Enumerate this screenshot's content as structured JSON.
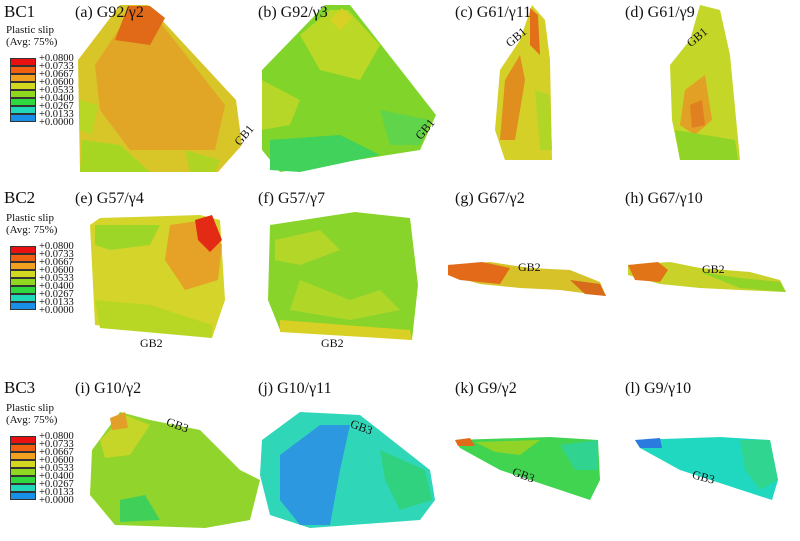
{
  "legend": {
    "title_line1": "Plastic slip",
    "title_line2": "(Avg: 75%)",
    "ticks": [
      "+0.0800",
      "+0.0733",
      "+0.0667",
      "+0.0600",
      "+0.0533",
      "+0.0400",
      "+0.0267",
      "+0.0133",
      "+0.0000"
    ],
    "colors": [
      "#e81010",
      "#f06010",
      "#f2a020",
      "#d2d820",
      "#90d820",
      "#30d840",
      "#20d8b8",
      "#1890e8",
      "#1a1ae8"
    ]
  },
  "rows": [
    {
      "label": "BC1",
      "panels": [
        {
          "label": "(a) G92/γ2",
          "gb": ""
        },
        {
          "label": "(b) G92/γ3",
          "gb": "GB1"
        },
        {
          "label": "(c) G61/γ11",
          "gb": "GB1"
        },
        {
          "label": "(d) G61/γ9",
          "gb": "GB1"
        }
      ]
    },
    {
      "label": "BC2",
      "panels": [
        {
          "label": "(e) G57/γ4",
          "gb": "GB2"
        },
        {
          "label": "(f) G57/γ7",
          "gb": "GB2"
        },
        {
          "label": "(g) G67/γ2",
          "gb": "GB2"
        },
        {
          "label": "(h) G67/γ10",
          "gb": "GB2"
        }
      ]
    },
    {
      "label": "BC3",
      "panels": [
        {
          "label": "(i) G10/γ2",
          "gb": "GB3"
        },
        {
          "label": "(j) G10/γ11",
          "gb": "GB3"
        },
        {
          "label": "(k) G9/γ2",
          "gb": "GB3"
        },
        {
          "label": "(l) G9/γ10",
          "gb": "GB3"
        }
      ]
    }
  ],
  "extra_gb": {
    "label_a": "GB1"
  }
}
